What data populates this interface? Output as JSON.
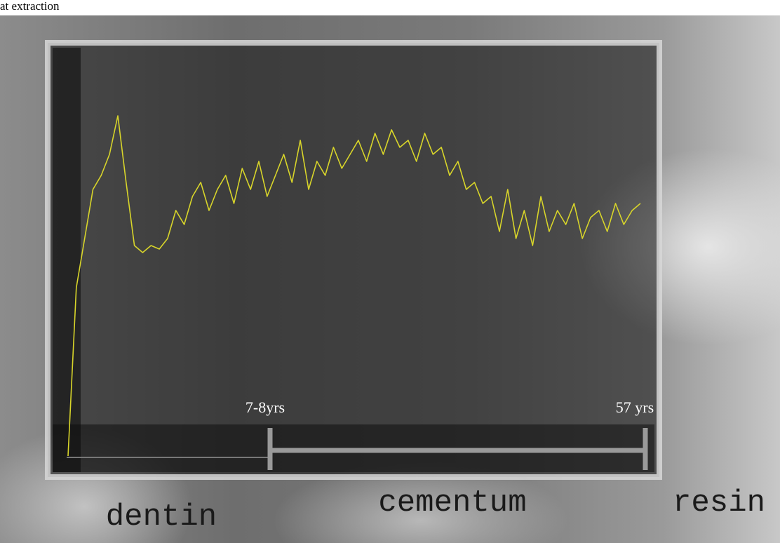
{
  "caption": "at extraction",
  "scale_labels": [
    "7-8yrs",
    "57 yrs"
  ],
  "regions": [
    "dentin",
    "cementum",
    "resin"
  ],
  "chart_data": {
    "type": "line",
    "color": "#d8d52a",
    "ylim": [
      0,
      100
    ],
    "values": [
      0,
      48,
      62,
      76,
      80,
      86,
      97,
      78,
      60,
      58,
      60,
      59,
      62,
      70,
      66,
      74,
      78,
      70,
      76,
      80,
      72,
      82,
      76,
      84,
      74,
      80,
      86,
      78,
      90,
      76,
      84,
      80,
      88,
      82,
      86,
      90,
      84,
      92,
      86,
      93,
      88,
      90,
      84,
      92,
      86,
      88,
      80,
      84,
      76,
      78,
      72,
      74,
      64,
      76,
      62,
      70,
      60,
      74,
      64,
      70,
      66,
      72,
      62,
      68,
      70,
      64,
      72,
      66,
      70,
      72
    ]
  }
}
